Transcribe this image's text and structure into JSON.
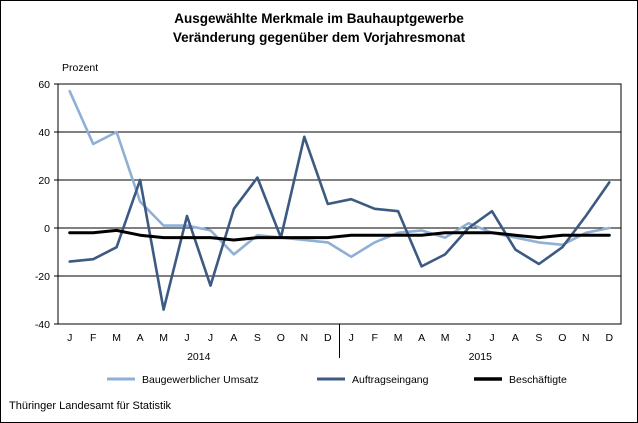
{
  "chart_data": {
    "type": "line",
    "title": "Ausgewählte Merkmale im Bauhauptgewerbe",
    "subtitle": "Veränderung gegenüber dem Vorjahresmonat",
    "ylabel": "Prozent",
    "ylim": [
      -40,
      60
    ],
    "yticks": [
      -40,
      -20,
      0,
      20,
      40,
      60
    ],
    "categories": [
      "J",
      "F",
      "M",
      "A",
      "M",
      "J",
      "J",
      "A",
      "S",
      "O",
      "N",
      "D",
      "J",
      "F",
      "M",
      "A",
      "M",
      "J",
      "J",
      "A",
      "S",
      "O",
      "N",
      "D"
    ],
    "year_labels": [
      "2014",
      "2015"
    ],
    "grid": true,
    "legend_position": "bottom",
    "series": [
      {
        "name": "Baugewerblicher Umsatz",
        "color": "#8fb0d6",
        "values": [
          57,
          35,
          40,
          11,
          1,
          1,
          -1,
          -11,
          -3,
          -4,
          -5,
          -6,
          -12,
          -6,
          -2,
          -1,
          -4,
          2,
          -2,
          -4,
          -6,
          -7,
          -2,
          0
        ]
      },
      {
        "name": "Auftragseingang",
        "color": "#3c5a82",
        "values": [
          -14,
          -13,
          -8,
          20,
          -34,
          5,
          -24,
          8,
          21,
          -4,
          38,
          10,
          12,
          8,
          7,
          -16,
          -11,
          0,
          7,
          -9,
          -15,
          -8,
          5,
          19
        ]
      },
      {
        "name": "Beschäftigte",
        "color": "#000000",
        "values": [
          -2,
          -2,
          -1,
          -3,
          -4,
          -4,
          -4,
          -5,
          -4,
          -4,
          -4,
          -4,
          -3,
          -3,
          -3,
          -3,
          -2,
          -2,
          -2,
          -3,
          -4,
          -3,
          -3,
          -3
        ]
      }
    ]
  },
  "source": "Thüringer Landesamt für Statistik"
}
